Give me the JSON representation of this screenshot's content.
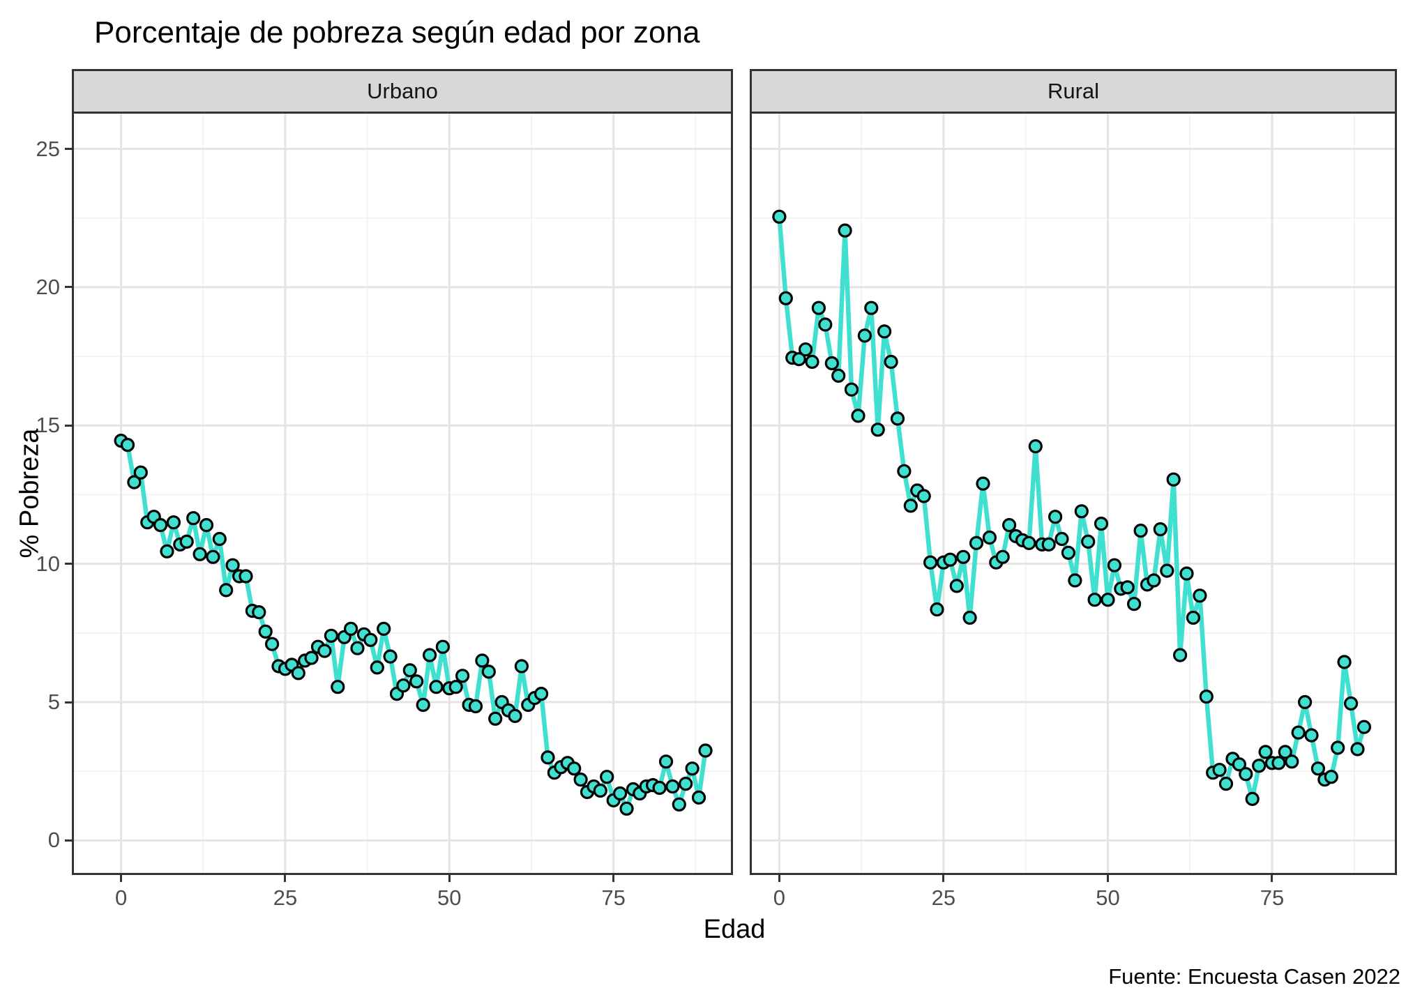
{
  "chart_data": {
    "type": "line",
    "title": "Porcentaje de pobreza según edad por zona",
    "xlabel": "Edad",
    "ylabel": "% Pobreza",
    "caption": "Fuente: Encuesta Casen 2022",
    "legend_position": "none",
    "grid": true,
    "x_ticks": [
      0,
      25,
      50,
      75
    ],
    "x_minor": [
      12.5,
      37.5,
      62.5,
      87.5
    ],
    "y_ticks": [
      0,
      5,
      10,
      15,
      20,
      25
    ],
    "y_minor": [
      2.5,
      7.5,
      12.5,
      17.5,
      22.5
    ],
    "y_range": [
      -1.25,
      26.35
    ],
    "ages_start": 0,
    "facets": [
      {
        "label": "Urbano",
        "x_range": [
          -7.5,
          93.2
        ],
        "values": [
          14.45,
          14.3,
          12.95,
          13.3,
          11.5,
          11.7,
          11.4,
          10.45,
          11.5,
          10.7,
          10.8,
          11.65,
          10.35,
          11.4,
          10.25,
          10.9,
          9.05,
          9.95,
          9.55,
          9.55,
          8.3,
          8.25,
          7.55,
          7.1,
          6.3,
          6.2,
          6.35,
          6.05,
          6.5,
          6.6,
          7.0,
          6.85,
          7.4,
          5.55,
          7.35,
          7.65,
          6.95,
          7.45,
          7.25,
          6.25,
          7.65,
          6.65,
          5.3,
          5.6,
          6.15,
          5.75,
          4.9,
          6.7,
          5.55,
          7.0,
          5.5,
          5.55,
          5.95,
          4.9,
          4.85,
          6.5,
          6.1,
          4.4,
          5.0,
          4.7,
          4.5,
          6.3,
          4.9,
          5.15,
          5.3,
          3.0,
          2.45,
          2.65,
          2.8,
          2.6,
          2.2,
          1.75,
          1.95,
          1.8,
          2.3,
          1.45,
          1.7,
          1.15,
          1.85,
          1.7,
          1.95,
          2.0,
          1.9,
          2.85,
          1.95,
          1.3,
          2.05,
          2.6,
          1.55,
          3.25
        ]
      },
      {
        "label": "Rural",
        "x_range": [
          -4.5,
          94.0
        ],
        "values": [
          22.55,
          19.6,
          17.45,
          17.4,
          17.75,
          17.3,
          19.25,
          18.65,
          17.25,
          16.8,
          22.05,
          16.3,
          15.35,
          18.25,
          19.25,
          14.85,
          18.4,
          17.3,
          15.25,
          13.35,
          12.1,
          12.65,
          12.45,
          10.05,
          8.35,
          10.05,
          10.15,
          9.2,
          10.25,
          8.05,
          10.75,
          12.9,
          10.95,
          10.05,
          10.25,
          11.4,
          11.0,
          10.85,
          10.75,
          14.25,
          10.7,
          10.7,
          11.7,
          10.9,
          10.4,
          9.4,
          11.9,
          10.8,
          8.7,
          11.45,
          8.7,
          9.95,
          9.1,
          9.15,
          8.55,
          11.2,
          9.25,
          9.4,
          11.25,
          9.75,
          13.05,
          6.7,
          9.65,
          8.05,
          8.85,
          5.2,
          2.45,
          2.55,
          2.05,
          2.95,
          2.75,
          2.4,
          1.5,
          2.7,
          3.2,
          2.8,
          2.8,
          3.2,
          2.85,
          3.9,
          5.0,
          3.8,
          2.6,
          2.2,
          2.3,
          3.35,
          6.45,
          4.95,
          3.3,
          4.1
        ]
      }
    ],
    "colors": {
      "line": "#40e0d0",
      "point_fill": "#40e0d0",
      "point_stroke": "#000000",
      "grid_major": "#e4e4e4",
      "grid_minor": "#f1f1f1",
      "panel_border": "#333333",
      "strip_bg": "#d8d8d8",
      "axis_text": "#4d4d4d",
      "tick_mark": "#333333"
    }
  }
}
